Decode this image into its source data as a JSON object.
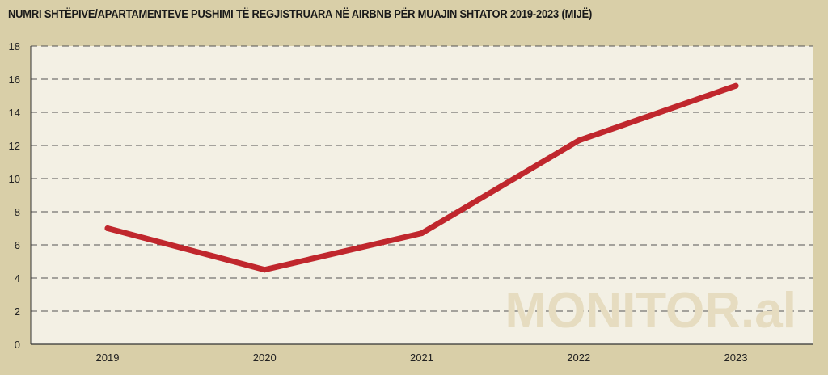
{
  "chart_data": {
    "type": "line",
    "title": "NUMRI SHTËPIVE/APARTAMENTEVE PUSHIMI TË REGJISTRUARA NË AIRBNB PËR MUAJIN SHTATOR 2019-2023  (MIJË)",
    "xlabel": "",
    "ylabel": "",
    "categories": [
      "2019",
      "2020",
      "2021",
      "2022",
      "2023"
    ],
    "series": [
      {
        "values": [
          7.0,
          4.5,
          6.7,
          12.3,
          15.6
        ]
      }
    ],
    "ylim": [
      0,
      18
    ],
    "yticks": [
      "0",
      "2",
      "4",
      "6",
      "8",
      "10",
      "12",
      "14",
      "16",
      "18"
    ],
    "grid": true,
    "line_color": "#c0272d",
    "plot_background": "#f3f0e4",
    "page_background": "#d9cfa8",
    "watermark": "MONITOR.al"
  }
}
